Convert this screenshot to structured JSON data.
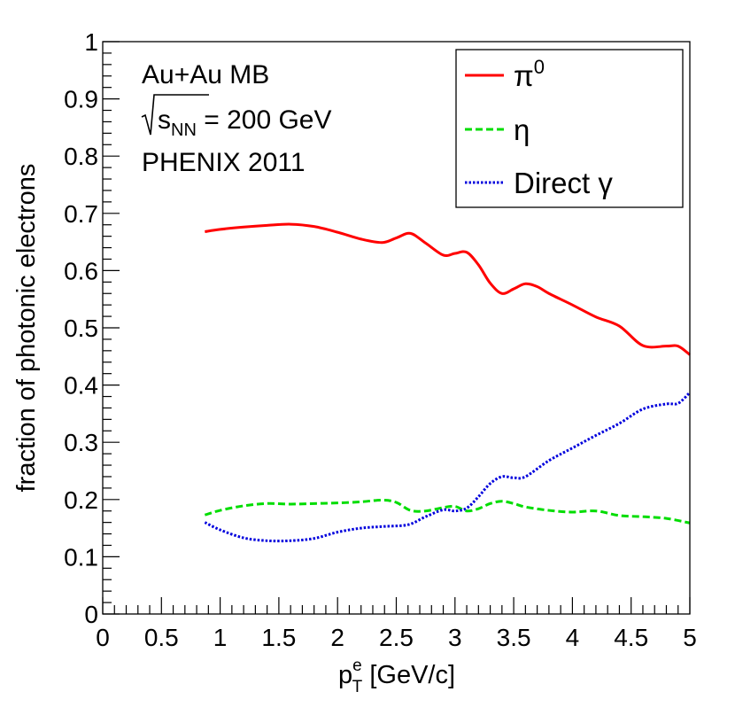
{
  "chart_data": {
    "type": "line",
    "title": "",
    "xlabel_main": "p",
    "xlabel_sup": "e",
    "xlabel_sub": "T",
    "xlabel_rest": " [GeV/c]",
    "ylabel": "fraction of photonic electrons",
    "xlim": [
      0,
      5
    ],
    "ylim": [
      0,
      1
    ],
    "x_ticks": [
      0,
      0.5,
      1,
      1.5,
      2,
      2.5,
      3,
      3.5,
      4,
      4.5,
      5
    ],
    "x_tick_labels": [
      "0",
      "0.5",
      "1",
      "1.5",
      "2",
      "2.5",
      "3",
      "3.5",
      "4",
      "4.5",
      "5"
    ],
    "y_ticks": [
      0,
      0.1,
      0.2,
      0.3,
      0.4,
      0.5,
      0.6,
      0.7,
      0.8,
      0.9,
      1
    ],
    "y_tick_labels": [
      "0",
      "0.1",
      "0.2",
      "0.3",
      "0.4",
      "0.5",
      "0.6",
      "0.7",
      "0.8",
      "0.9",
      "1"
    ],
    "annotations": {
      "line1": "Au+Au MB",
      "line2_symbol": "s",
      "line2_sub": "NN",
      "line2_rest": " = 200 GeV",
      "line3": "PHENIX 2011"
    },
    "legend_position": "top-right",
    "series": [
      {
        "name": "π0",
        "legend_base": "π",
        "legend_sup": "0",
        "color": "#ff0000",
        "dash": "solid",
        "x": [
          0.87,
          1.0,
          1.2,
          1.4,
          1.6,
          1.8,
          2.0,
          2.2,
          2.38,
          2.5,
          2.62,
          2.75,
          2.9,
          3.0,
          3.1,
          3.2,
          3.3,
          3.4,
          3.5,
          3.6,
          3.7,
          3.8,
          4.0,
          4.2,
          4.4,
          4.6,
          4.8,
          4.9,
          5.0
        ],
        "y": [
          0.668,
          0.672,
          0.676,
          0.679,
          0.681,
          0.677,
          0.667,
          0.655,
          0.649,
          0.657,
          0.665,
          0.648,
          0.627,
          0.63,
          0.632,
          0.61,
          0.578,
          0.56,
          0.568,
          0.577,
          0.572,
          0.56,
          0.54,
          0.519,
          0.503,
          0.469,
          0.468,
          0.468,
          0.453
        ]
      },
      {
        "name": "η",
        "legend_base": "η",
        "legend_sup": "",
        "color": "#00dd00",
        "dash": "dashed",
        "x": [
          0.87,
          1.0,
          1.2,
          1.4,
          1.6,
          1.8,
          2.0,
          2.2,
          2.38,
          2.5,
          2.62,
          2.75,
          2.9,
          3.0,
          3.1,
          3.2,
          3.3,
          3.4,
          3.5,
          3.6,
          3.8,
          4.0,
          4.2,
          4.4,
          4.6,
          4.8,
          5.0
        ],
        "y": [
          0.173,
          0.181,
          0.189,
          0.193,
          0.192,
          0.193,
          0.194,
          0.196,
          0.199,
          0.195,
          0.181,
          0.18,
          0.186,
          0.188,
          0.18,
          0.184,
          0.193,
          0.197,
          0.193,
          0.187,
          0.181,
          0.178,
          0.18,
          0.172,
          0.17,
          0.167,
          0.159
        ]
      },
      {
        "name": "Direct γ",
        "legend_base": "Direct γ",
        "legend_sup": "",
        "color": "#0000dd",
        "dash": "dotted",
        "x": [
          0.87,
          1.0,
          1.2,
          1.4,
          1.6,
          1.8,
          2.0,
          2.2,
          2.4,
          2.6,
          2.75,
          2.9,
          3.0,
          3.1,
          3.2,
          3.3,
          3.4,
          3.5,
          3.6,
          3.8,
          4.0,
          4.2,
          4.4,
          4.6,
          4.8,
          4.9,
          5.0
        ],
        "y": [
          0.16,
          0.147,
          0.133,
          0.128,
          0.128,
          0.132,
          0.143,
          0.15,
          0.153,
          0.156,
          0.17,
          0.182,
          0.18,
          0.185,
          0.205,
          0.228,
          0.24,
          0.238,
          0.24,
          0.268,
          0.29,
          0.312,
          0.333,
          0.358,
          0.367,
          0.368,
          0.387
        ]
      }
    ]
  }
}
